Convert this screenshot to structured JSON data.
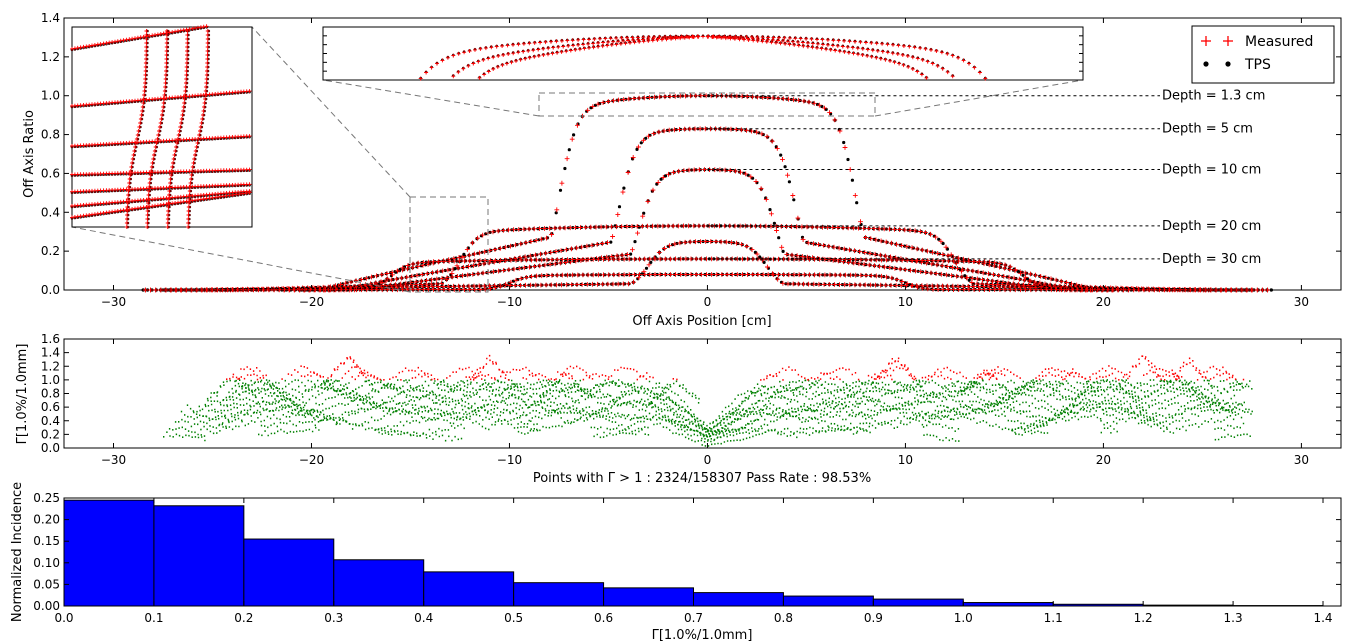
{
  "colors": {
    "measured": "#ff0000",
    "tps": "#000000",
    "pass": "#008000",
    "fail": "#ff0000",
    "bar": "#0000ff",
    "bar_edge": "#000000"
  },
  "chart_data": [
    {
      "type": "scatter",
      "xlabel": "Off Axis Position [cm]",
      "ylabel": "Off Axis Ratio",
      "xlim": [
        -32.5,
        32
      ],
      "ylim": [
        0,
        1.4
      ],
      "xticks": [
        "−30",
        "−20",
        "−10",
        "0",
        "10",
        "20",
        "30"
      ],
      "yticks": [
        "0.0",
        "0.2",
        "0.4",
        "0.6",
        "0.8",
        "1.0",
        "1.2",
        "1.4"
      ],
      "legend": {
        "position": "top-right",
        "entries": [
          "Measured",
          "TPS"
        ]
      },
      "series": [
        {
          "name": "Measured",
          "marker": "+"
        },
        {
          "name": "TPS",
          "marker": "dot"
        }
      ],
      "profiles": [
        {
          "half_width": 7.5,
          "peak": 1.0,
          "wing_end": 20,
          "wing_level": 0.45
        },
        {
          "half_width": 4.5,
          "peak": 0.83,
          "wing_end": 19,
          "wing_level": 0.4
        },
        {
          "half_width": 3.5,
          "peak": 0.62,
          "wing_end": 18,
          "wing_level": 0.38
        },
        {
          "half_width": 12.5,
          "peak": 0.33,
          "wing_end": 24,
          "wing_level": 0.22
        },
        {
          "half_width": 3.0,
          "peak": 0.25,
          "wing_end": 26,
          "wing_level": 0.15
        },
        {
          "half_width": 16.0,
          "peak": 0.16,
          "wing_end": 27,
          "wing_level": 0.1
        },
        {
          "half_width": 10.0,
          "peak": 0.08,
          "wing_end": 27,
          "wing_level": 0.05
        }
      ],
      "annotations": [
        "Depth = 1.3 cm",
        "Depth = 5 cm",
        "Depth = 10 cm",
        "Depth = 20 cm",
        "Depth = 30 cm"
      ],
      "annotation_y": [
        1.0,
        0.83,
        0.62,
        0.33,
        0.16
      ]
    },
    {
      "type": "scatter",
      "ylabel": "Γ[1.0%/1.0mm]",
      "xlabel": "Points with Γ > 1 : 2324/158307  Pass Rate : 98.53%",
      "xlim": [
        -32.5,
        32
      ],
      "ylim": [
        0,
        1.6
      ],
      "xticks": [
        "−30",
        "−20",
        "−10",
        "0",
        "10",
        "20",
        "30"
      ],
      "yticks": [
        "0.0",
        "0.2",
        "0.4",
        "0.6",
        "0.8",
        "1.0",
        "1.2",
        "1.4",
        "1.6"
      ],
      "x_range": [
        -27.5,
        27.5
      ],
      "fail_peaks": [
        {
          "x": -24.0,
          "y": 1.12
        },
        {
          "x": -18.2,
          "y": 1.4
        },
        {
          "x": -11.0,
          "y": 1.38
        },
        {
          "x": -7.2,
          "y": 1.15
        },
        {
          "x": -1.7,
          "y": 1.05
        },
        {
          "x": 9.5,
          "y": 1.38
        },
        {
          "x": 14.0,
          "y": 1.2
        },
        {
          "x": 18.5,
          "y": 1.2
        },
        {
          "x": 22.0,
          "y": 1.4
        },
        {
          "x": 24.3,
          "y": 1.35
        }
      ]
    },
    {
      "type": "bar",
      "xlabel": "Γ[1.0%/1.0mm]",
      "ylabel": "Normalized Incidence",
      "xlim": [
        0,
        1.42
      ],
      "ylim": [
        0,
        0.25
      ],
      "xticks": [
        "0.0",
        "0.1",
        "0.2",
        "0.3",
        "0.4",
        "0.5",
        "0.6",
        "0.7",
        "0.8",
        "0.9",
        "1.0",
        "1.1",
        "1.2",
        "1.3",
        "1.4"
      ],
      "yticks": [
        "0.00",
        "0.05",
        "0.10",
        "0.15",
        "0.20",
        "0.25"
      ],
      "bin_edges": [
        0.0,
        0.1,
        0.2,
        0.3,
        0.4,
        0.5,
        0.6,
        0.7,
        0.8,
        0.9,
        1.0,
        1.1,
        1.2,
        1.3,
        1.4
      ],
      "values": [
        0.245,
        0.232,
        0.155,
        0.107,
        0.079,
        0.054,
        0.042,
        0.031,
        0.023,
        0.016,
        0.008,
        0.004,
        0.002,
        0.001
      ]
    }
  ]
}
